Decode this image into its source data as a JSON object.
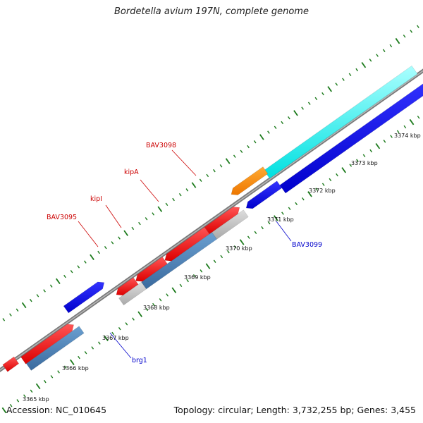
{
  "title": "Bordetella avium 197N, complete genome",
  "footer": {
    "accession": "Accession: NC_010645",
    "summary": "Topology: circular; Length: 3,732,255 bp; Genes: 3,455"
  },
  "colors": {
    "backbone": "#8a8a8a",
    "tick_major": "#1b7a1b",
    "tick_minor": "#1b7a1b",
    "cds_forward": "#0000ee",
    "cds_reverse": "#ee1111",
    "cds_blue": "#4a7fb5",
    "cds_cyan": "#00ffff",
    "cds_orange": "#ff8c00",
    "cds_gray": "#bbbbbb",
    "label_red": "#cc0000",
    "label_blue": "#0000cc"
  },
  "scale_labels": [
    "3365 kbp",
    "3366 kbp",
    "3367 kbp",
    "3368 kbp",
    "3369 kbp",
    "3370 kbp",
    "3371 kbp",
    "3372 kbp",
    "3373 kbp",
    "3374 kbp"
  ],
  "gene_labels": [
    {
      "text": "BAV3098",
      "color": "red"
    },
    {
      "text": "kipA",
      "color": "red"
    },
    {
      "text": "kipI",
      "color": "red"
    },
    {
      "text": "BAV3095",
      "color": "red"
    },
    {
      "text": "BAV3099",
      "color": "blue"
    },
    {
      "text": "brg1",
      "color": "blue"
    }
  ]
}
